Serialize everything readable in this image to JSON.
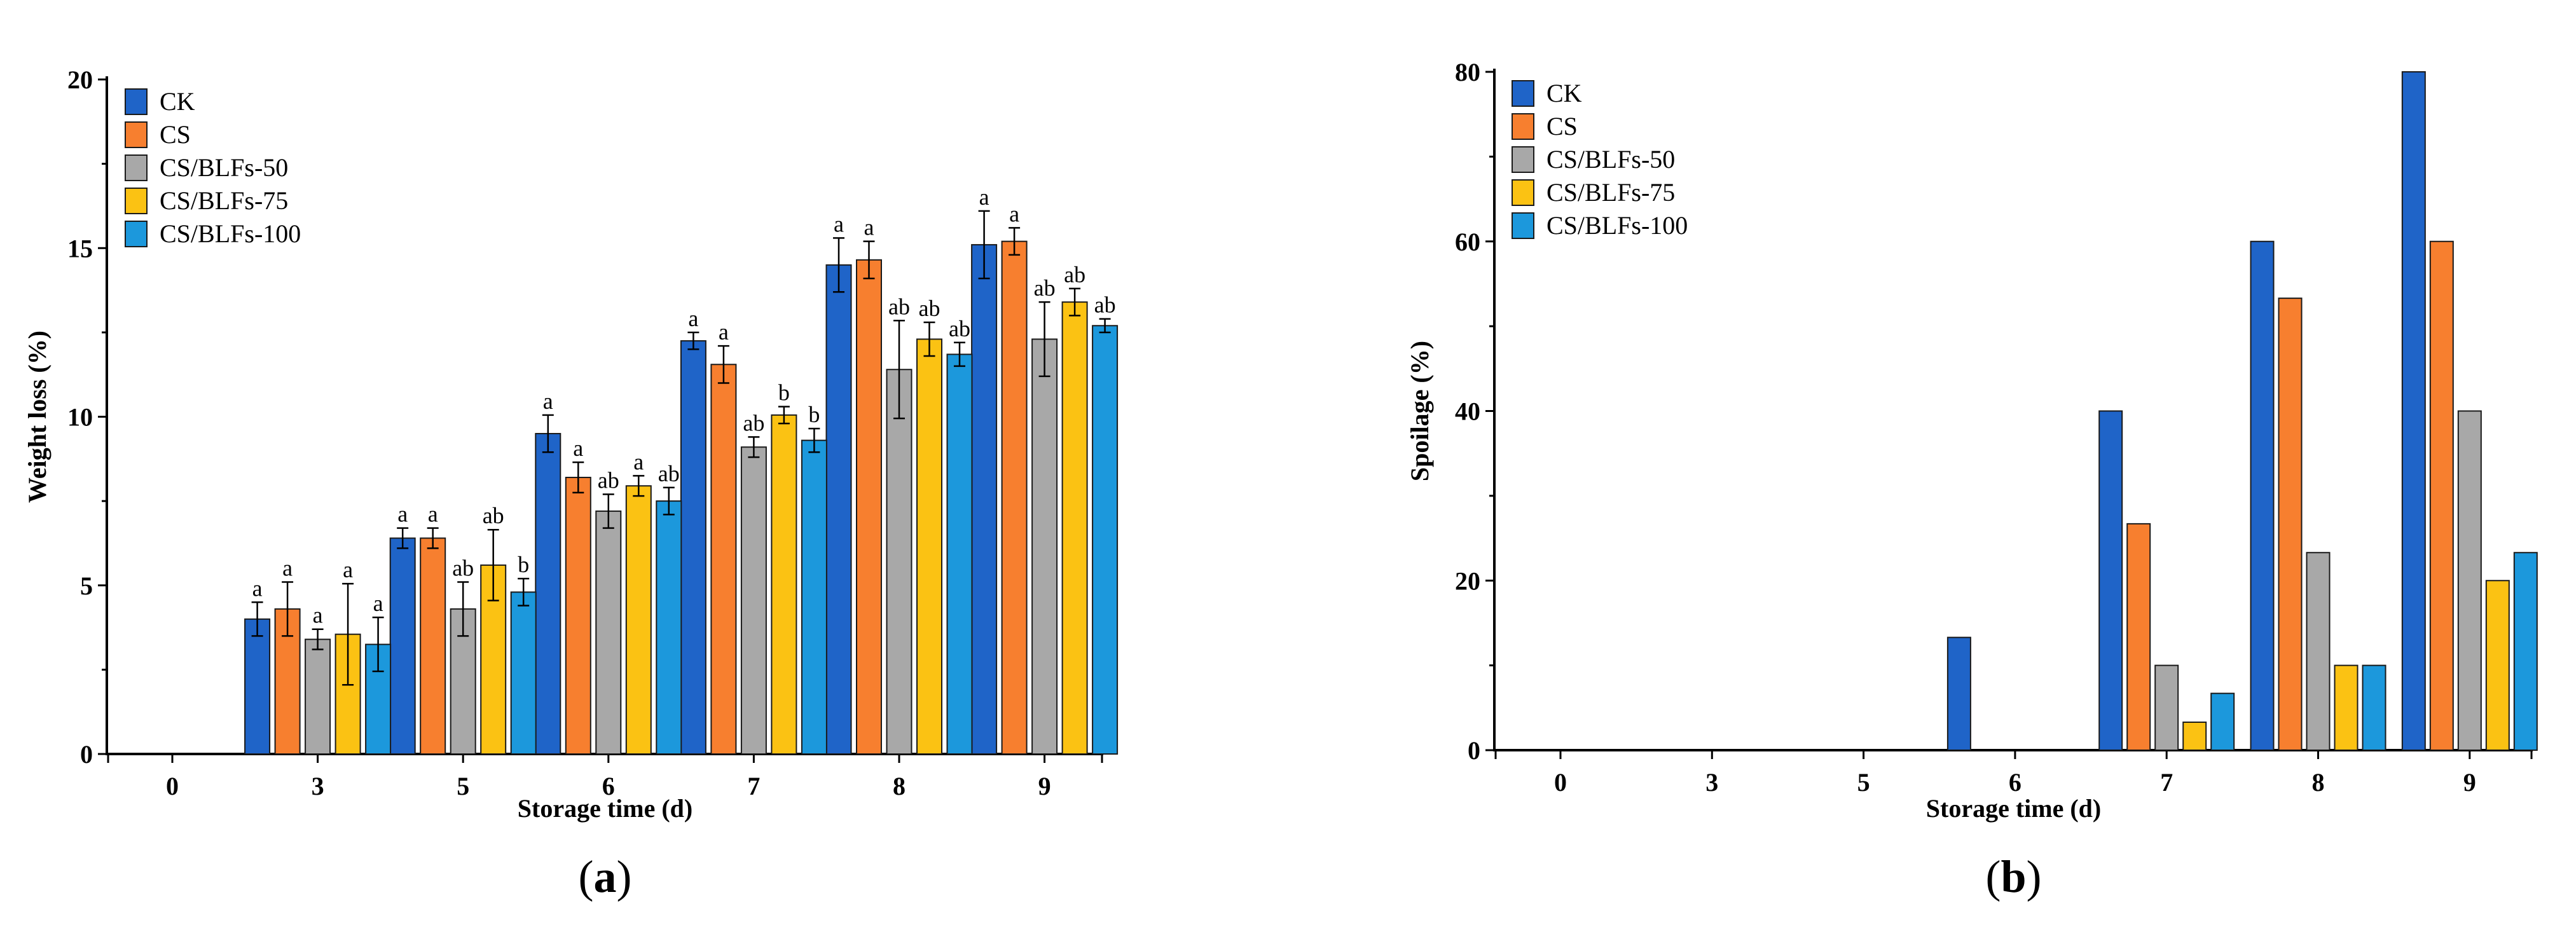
{
  "legend": [
    "CK",
    "CS",
    "CS/BLFs-50",
    "CS/BLFs-75",
    "CS/BLFs-100"
  ],
  "colors": {
    "CK": "#1f64c8",
    "CS": "#f77f2f",
    "CS/BLFs-50": "#a8a8a8",
    "CS/BLFs-75": "#fbc213",
    "CS/BLFs-100": "#1c98dc"
  },
  "chart_data": [
    {
      "id": "a",
      "panel_label": "a",
      "type": "bar",
      "xlabel": "Storage time (d)",
      "ylabel": "Weight loss (%)",
      "ylim": [
        0,
        20
      ],
      "yticks": [
        0,
        5,
        10,
        15,
        20
      ],
      "categories": [
        "0",
        "3",
        "5",
        "6",
        "7",
        "8",
        "9"
      ],
      "legend_position": "top-left",
      "series": [
        {
          "name": "CK",
          "values": [
            0,
            4.0,
            6.4,
            9.5,
            12.25,
            14.5,
            15.1
          ],
          "errors": [
            0,
            0.5,
            0.3,
            0.55,
            0.25,
            0.8,
            1.0
          ],
          "labels": [
            "",
            "a",
            "a",
            "a",
            "a",
            "a",
            "a"
          ]
        },
        {
          "name": "CS",
          "values": [
            0,
            4.3,
            6.4,
            8.2,
            11.55,
            14.65,
            15.2
          ],
          "errors": [
            0,
            0.8,
            0.3,
            0.45,
            0.55,
            0.55,
            0.4
          ],
          "labels": [
            "",
            "a",
            "a",
            "a",
            "a",
            "a",
            "a"
          ]
        },
        {
          "name": "CS/BLFs-50",
          "values": [
            0,
            3.4,
            4.3,
            7.2,
            9.1,
            11.4,
            12.3
          ],
          "errors": [
            0,
            0.3,
            0.8,
            0.5,
            0.3,
            1.45,
            1.1
          ],
          "labels": [
            "",
            "a",
            "ab",
            "ab",
            "ab",
            "ab",
            "ab"
          ]
        },
        {
          "name": "CS/BLFs-75",
          "values": [
            0,
            3.55,
            5.6,
            7.95,
            10.05,
            12.3,
            13.4
          ],
          "errors": [
            0,
            1.5,
            1.05,
            0.3,
            0.25,
            0.5,
            0.4
          ],
          "labels": [
            "",
            "a",
            "ab",
            "a",
            "b",
            "ab",
            "ab"
          ]
        },
        {
          "name": "CS/BLFs-100",
          "values": [
            0,
            3.25,
            4.8,
            7.5,
            9.3,
            11.85,
            12.7
          ],
          "errors": [
            0,
            0.8,
            0.4,
            0.4,
            0.35,
            0.35,
            0.2
          ],
          "labels": [
            "",
            "a",
            "b",
            "ab",
            "b",
            "ab",
            "ab"
          ]
        }
      ]
    },
    {
      "id": "b",
      "panel_label": "b",
      "type": "bar",
      "xlabel": "Storage time (d)",
      "ylabel": "Spoilage (%)",
      "ylim": [
        0,
        80
      ],
      "yticks": [
        0,
        20,
        40,
        60,
        80
      ],
      "categories": [
        "0",
        "3",
        "5",
        "6",
        "7",
        "8",
        "9"
      ],
      "legend_position": "top-left",
      "series": [
        {
          "name": "CK",
          "values": [
            0,
            0,
            0,
            13.3,
            40,
            60,
            80
          ]
        },
        {
          "name": "CS",
          "values": [
            0,
            0,
            0,
            0,
            26.7,
            53.3,
            60
          ]
        },
        {
          "name": "CS/BLFs-50",
          "values": [
            0,
            0,
            0,
            0,
            10,
            23.3,
            40
          ]
        },
        {
          "name": "CS/BLFs-75",
          "values": [
            0,
            0,
            0,
            0,
            3.3,
            10,
            20
          ]
        },
        {
          "name": "CS/BLFs-100",
          "values": [
            0,
            0,
            0,
            0,
            6.7,
            10,
            23.3
          ]
        }
      ]
    }
  ]
}
